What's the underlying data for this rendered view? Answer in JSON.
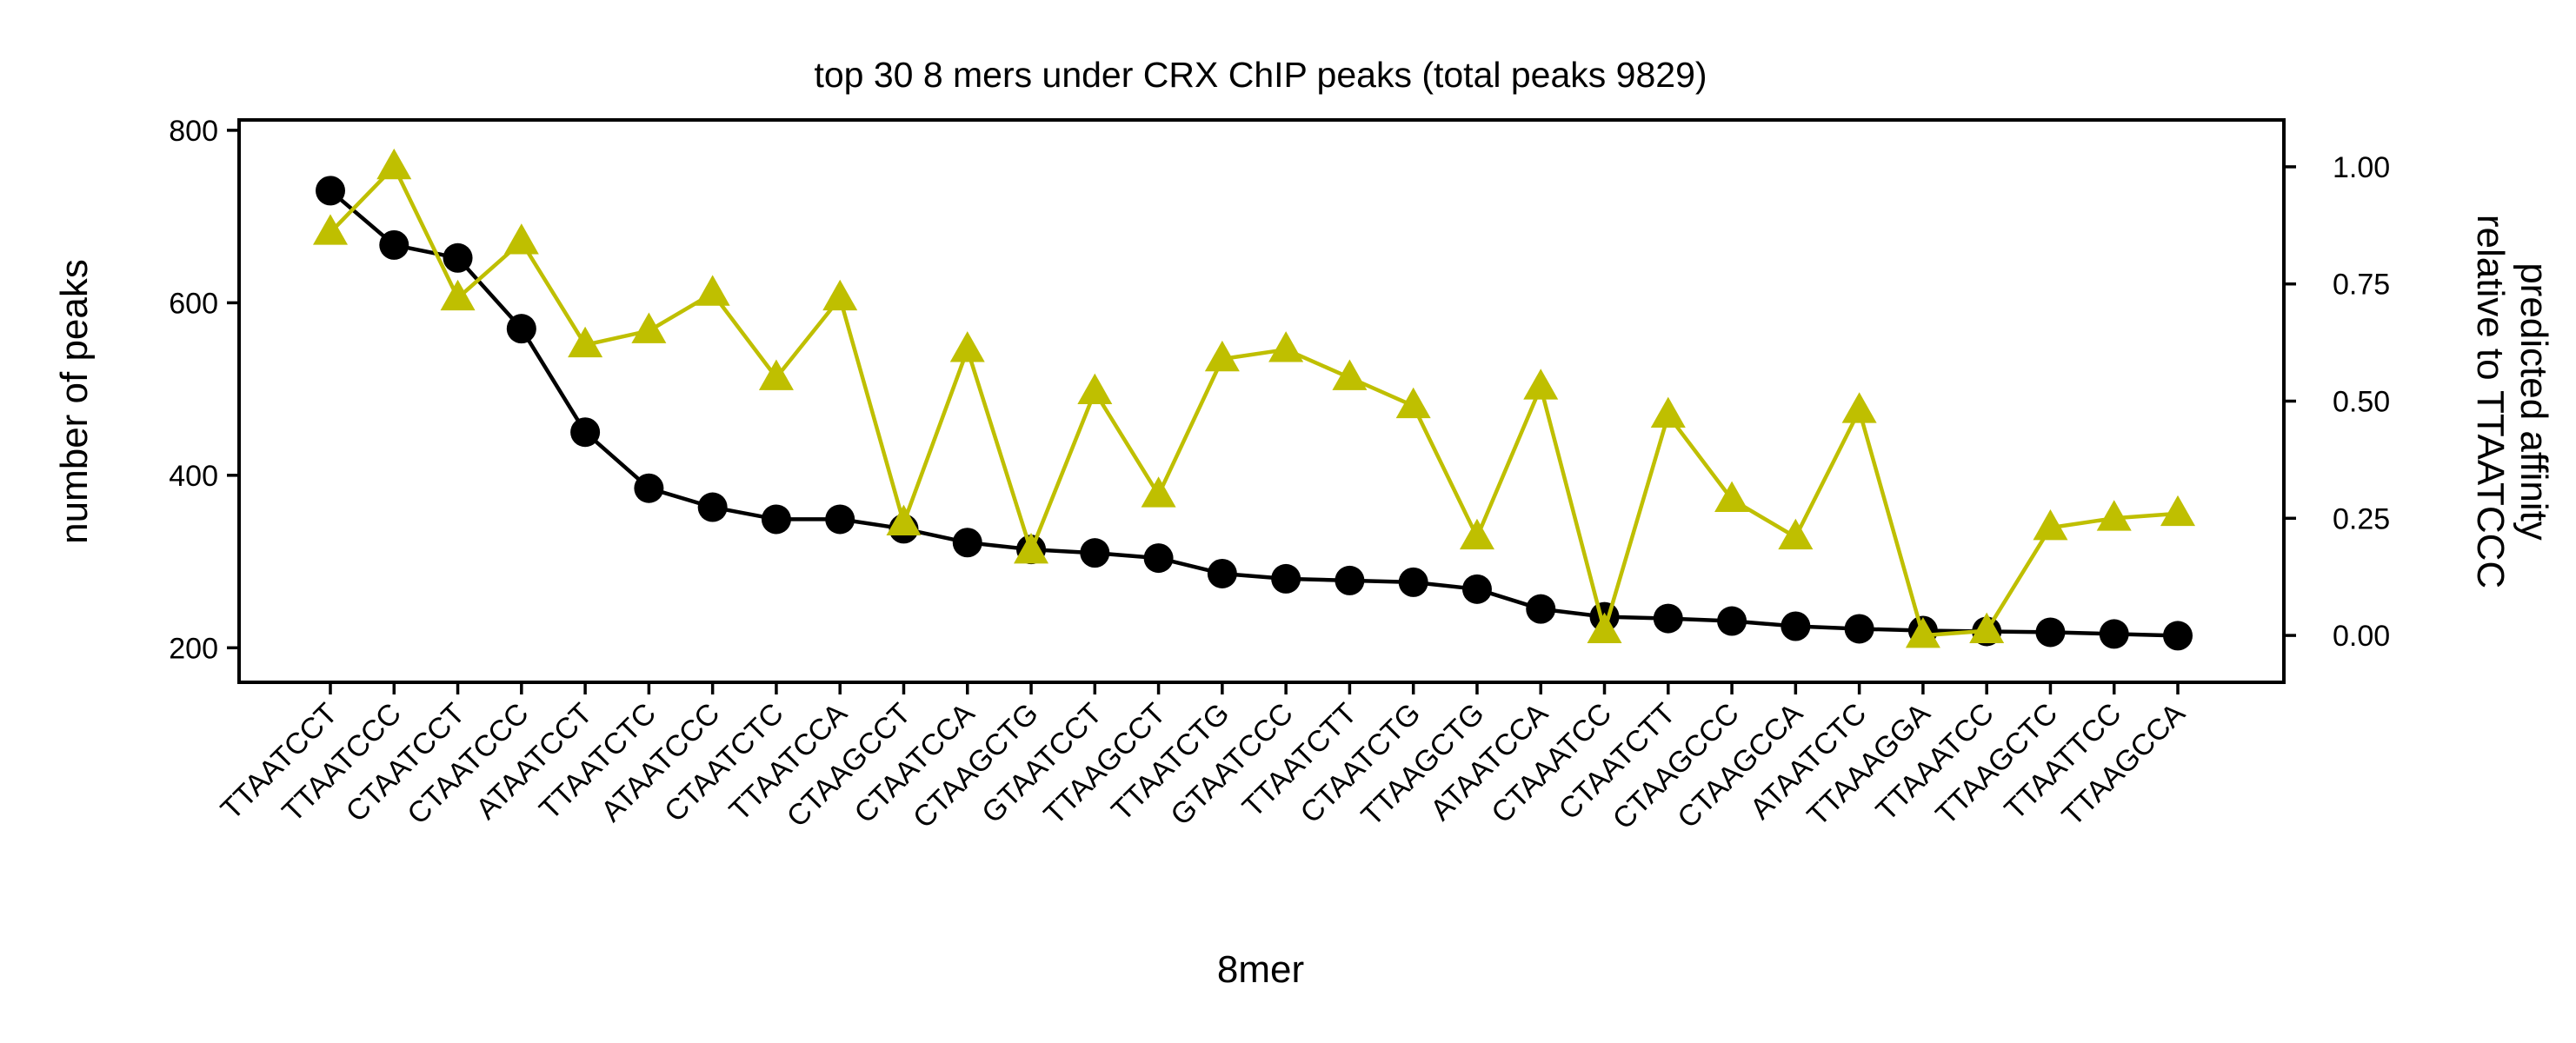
{
  "chart_data": {
    "type": "line",
    "title": "top 30 8 mers under CRX ChIP peaks (total peaks 9829)",
    "xlabel": "8mer",
    "ylabel": "number of peaks",
    "y2label": [
      "predicted affinity",
      "relative to TTAATCCC"
    ],
    "categories": [
      "TTAATCCT",
      "TTAATCCC",
      "CTAATCCT",
      "CTAATCCC",
      "ATAATCCT",
      "TTAATCTC",
      "ATAATCCC",
      "CTAATCTC",
      "TTAATCCA",
      "CTAAGCCT",
      "CTAATCCA",
      "CTAAGCTG",
      "GTAATCCT",
      "TTAAGCCT",
      "TTAATCTG",
      "GTAATCCC",
      "TTAATCTT",
      "CTAATCTG",
      "TTAAGCTG",
      "ATAATCCA",
      "CTAAATCC",
      "CTAATCTT",
      "CTAAGCCC",
      "CTAAGCCA",
      "ATAATCTC",
      "TTAAAGGA",
      "TTAAATCC",
      "TTAAGCTC",
      "TTAATTCC",
      "TTAAGCCA"
    ],
    "ylim": [
      160,
      812
    ],
    "yticks": [
      200,
      400,
      600,
      800
    ],
    "y2lim": [
      -0.1,
      1.1
    ],
    "y2ticks": [
      0.0,
      0.25,
      0.5,
      0.75,
      1.0
    ],
    "y2tick_labels": [
      "0.00",
      "0.25",
      "0.50",
      "0.75",
      "1.00"
    ],
    "grid": false,
    "series": [
      {
        "axis": "left",
        "marker": "circle",
        "color": "#000000",
        "values": [
          730,
          667,
          652,
          570,
          450,
          385,
          363,
          349,
          349,
          338,
          322,
          314,
          310,
          304,
          286,
          280,
          278,
          276,
          268,
          245,
          236,
          234,
          231,
          225,
          222,
          220,
          219,
          218,
          216,
          214
        ]
      },
      {
        "axis": "right",
        "marker": "triangle",
        "color": "#bfbf00",
        "values": [
          0.86,
          1.0,
          0.72,
          0.84,
          0.62,
          0.65,
          0.73,
          0.55,
          0.72,
          0.24,
          0.61,
          0.18,
          0.52,
          0.3,
          0.59,
          0.61,
          0.55,
          0.49,
          0.21,
          0.53,
          0.01,
          0.47,
          0.29,
          0.21,
          0.48,
          0.0,
          0.01,
          0.23,
          0.25,
          0.26
        ]
      }
    ]
  }
}
